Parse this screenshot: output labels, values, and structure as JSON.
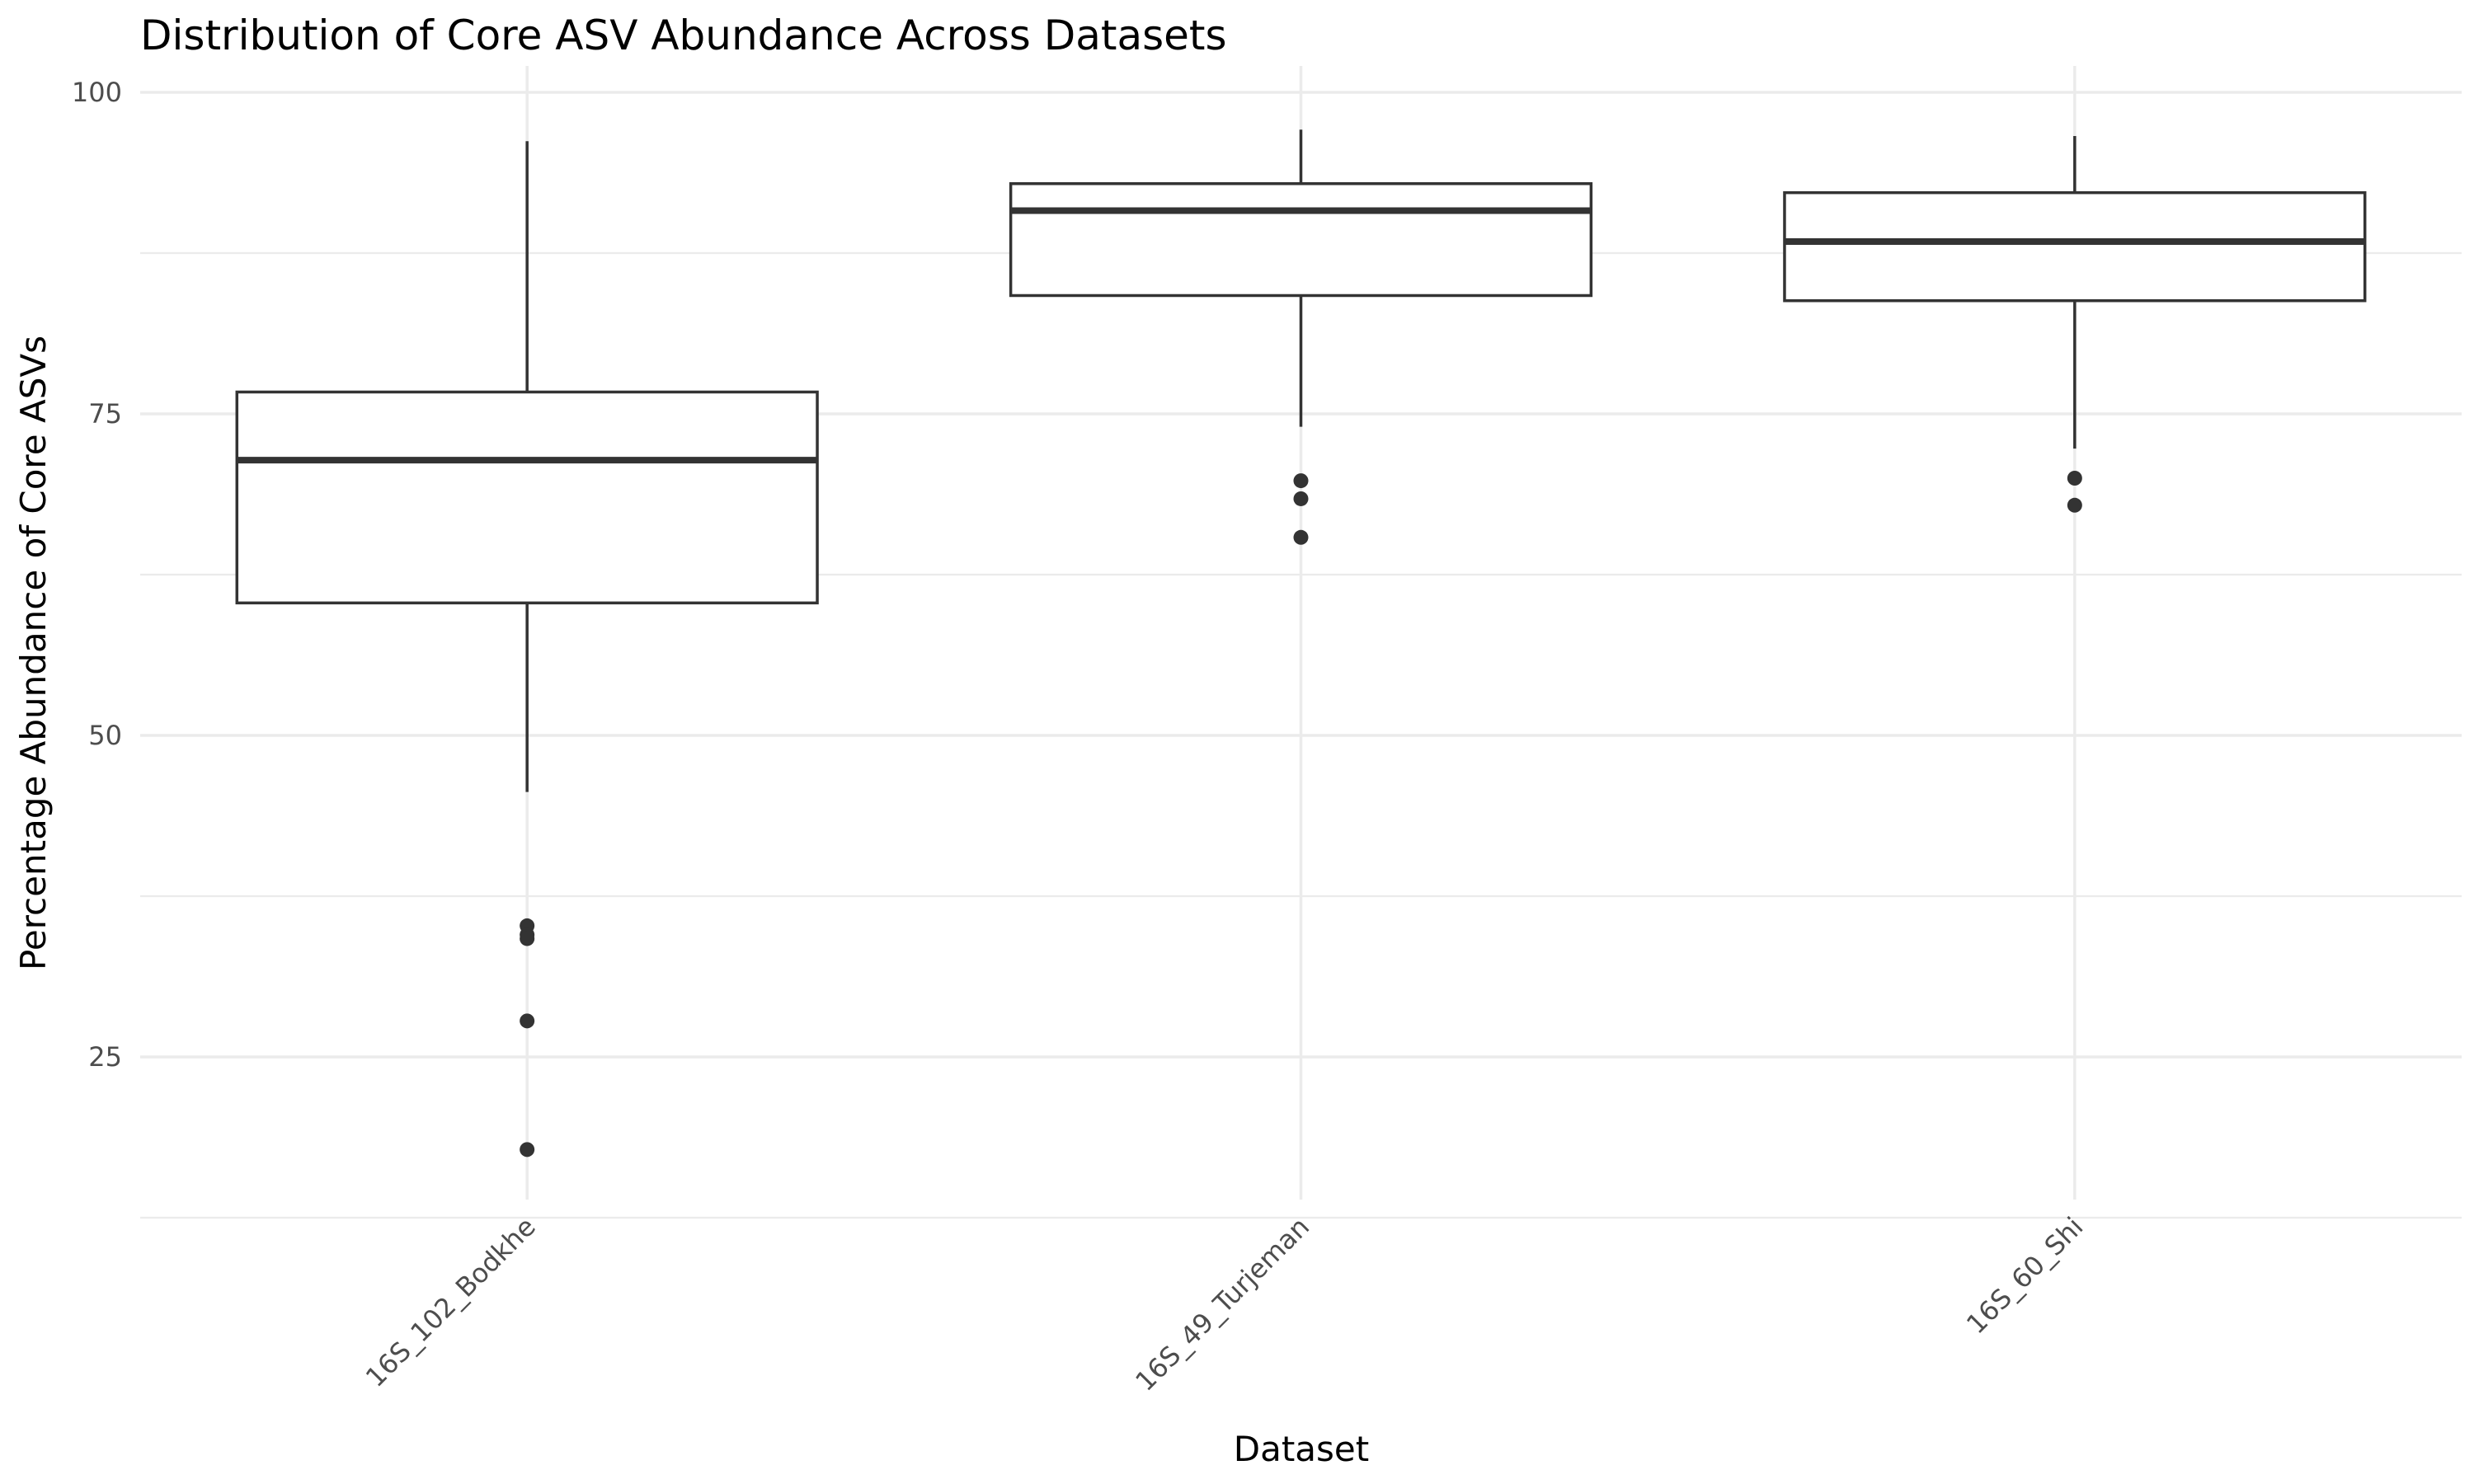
{
  "chart_data": {
    "type": "boxplot",
    "title": "Distribution of Core ASV Abundance Across Datasets",
    "xlabel": "Dataset",
    "ylabel": "Percentage Abundance of Core ASVs",
    "ylim": [
      12.5,
      101.5
    ],
    "yticks": [
      25,
      50,
      75,
      100
    ],
    "grid": true,
    "categories": [
      "16S_102_Bodkhe",
      "16S_49_Turjeman",
      "16S_60_Shi"
    ],
    "boxes": [
      {
        "category": "16S_102_Bodkhe",
        "whisker_low": 45.6,
        "q1": 60.3,
        "median": 71.4,
        "q3": 76.7,
        "whisker_high": 96.2,
        "outliers": [
          35.2,
          34.5,
          34.2,
          27.8,
          17.8
        ]
      },
      {
        "category": "16S_49_Turjeman",
        "whisker_low": 74.0,
        "q1": 84.2,
        "median": 90.8,
        "q3": 92.9,
        "whisker_high": 97.1,
        "outliers": [
          69.8,
          68.4,
          65.4
        ]
      },
      {
        "category": "16S_60_Shi",
        "whisker_low": 72.3,
        "q1": 83.8,
        "median": 88.4,
        "q3": 92.2,
        "whisker_high": 96.6,
        "outliers": [
          70.0,
          67.9
        ]
      }
    ]
  }
}
